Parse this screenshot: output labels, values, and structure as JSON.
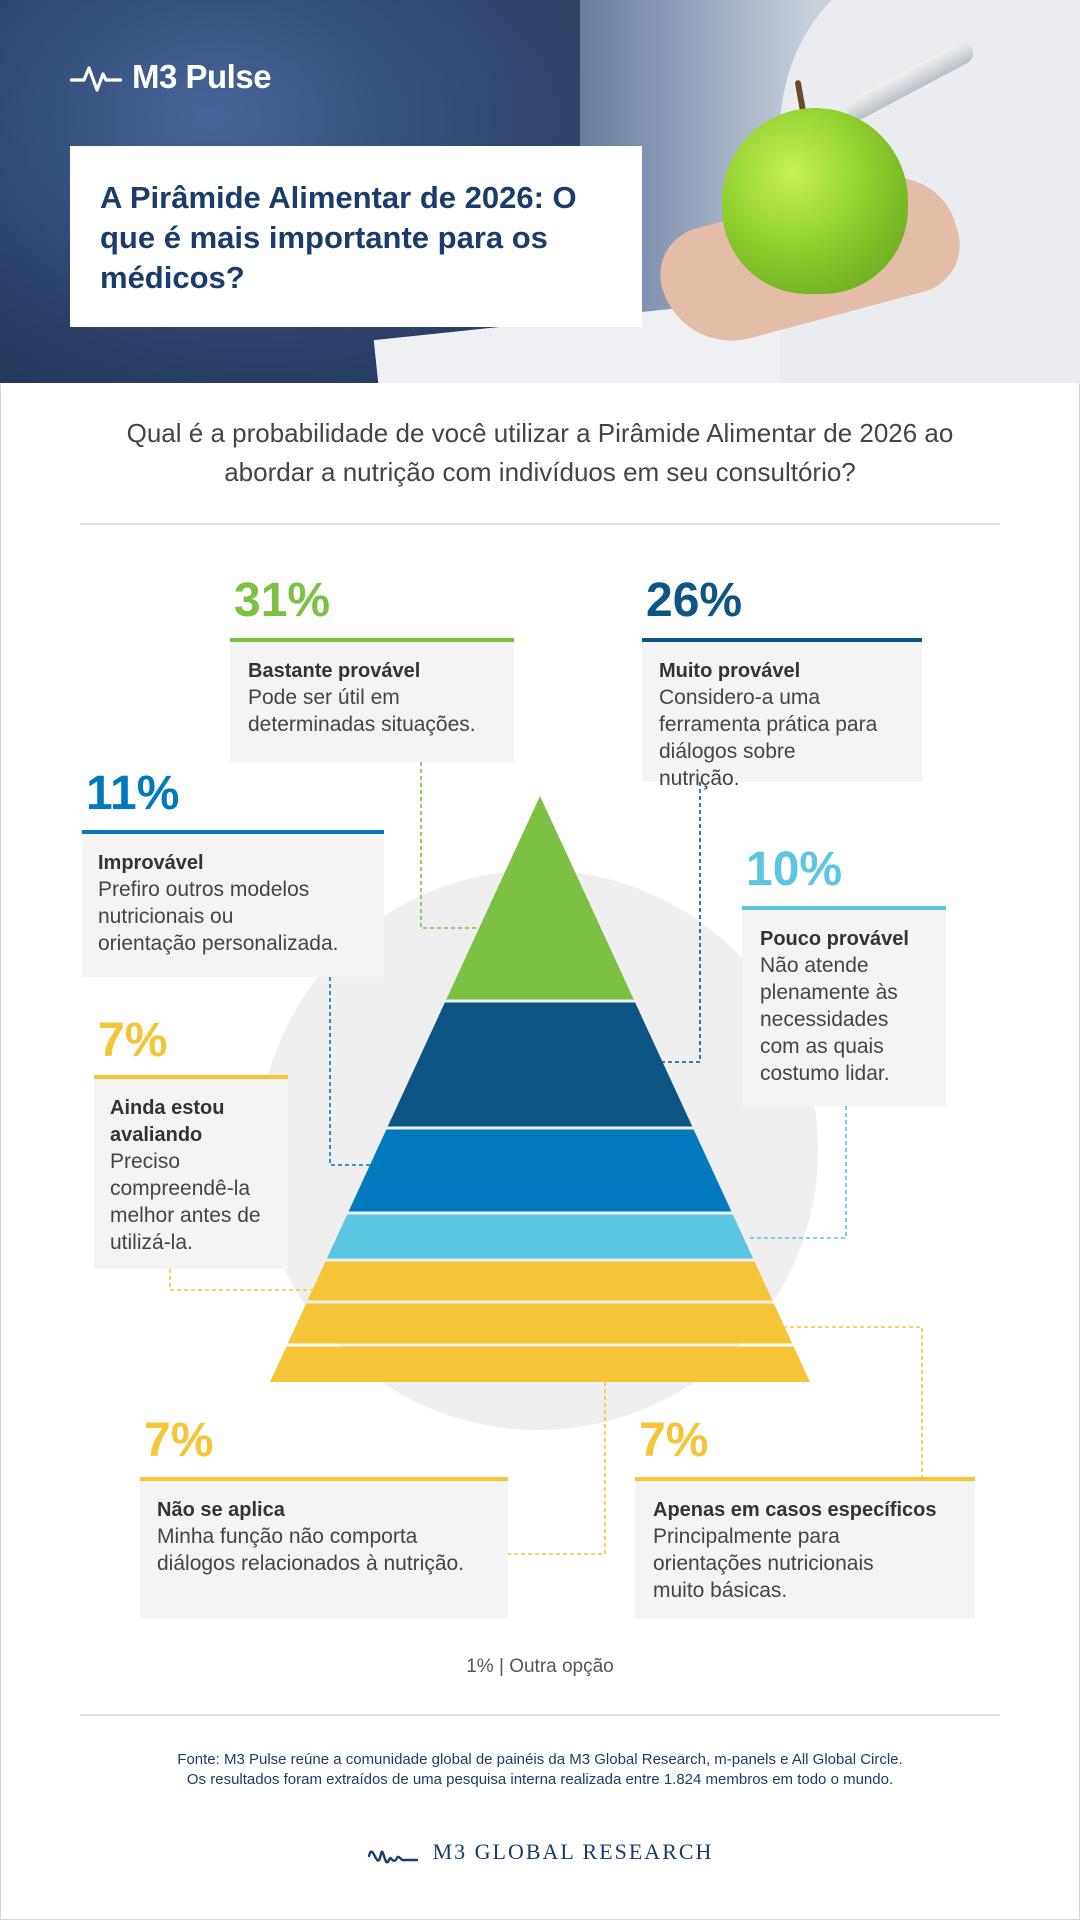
{
  "header": {
    "brand": "M3 Pulse",
    "title": "A Pirâmide Alimentar de 2026: O que é mais importante para os médicos?"
  },
  "question": "Qual é a probabilidade de você utilizar a Pirâmide Alimentar de 2026 ao abordar a nutrição com indivíduos em seu consultório?",
  "colors": {
    "green": "#7cc143",
    "dark_blue": "#0c5585",
    "mid_blue": "#0179bf",
    "light_blue": "#5ac6e2",
    "yellow": "#f5c537",
    "navy": "#1b3c6b"
  },
  "chart_data": {
    "type": "pyramid",
    "categories": [
      {
        "percent": "31%",
        "value": 31,
        "title": "Bastante provável",
        "description": "Pode ser útil em determinadas situações.",
        "color": "#7cc143"
      },
      {
        "percent": "26%",
        "value": 26,
        "title": "Muito provável",
        "description": "Considero-a uma ferramenta prática para diálogos sobre nutrição.",
        "color": "#0c5585"
      },
      {
        "percent": "11%",
        "value": 11,
        "title": "Improvável",
        "description": "Prefiro outros modelos nutricionais ou orientação personalizada.",
        "color": "#0179bf"
      },
      {
        "percent": "10%",
        "value": 10,
        "title": "Pouco provável",
        "description": "Não atende plenamente às necessidades com as quais costumo lidar.",
        "color": "#5ac6e2"
      },
      {
        "percent": "7%",
        "value": 7,
        "title": "Ainda estou avaliando",
        "description": "Preciso compreendê-la melhor antes de utilizá-la.",
        "color": "#f5c537"
      },
      {
        "percent": "7%",
        "value": 7,
        "title": "Apenas em casos específicos",
        "description": "Principalmente para orientações nutricionais muito básicas.",
        "color": "#f5c537"
      },
      {
        "percent": "7%",
        "value": 7,
        "title": "Não se aplica",
        "description": "Minha função não comporta diálogos relacionados à nutrição.",
        "color": "#f5c537"
      }
    ],
    "other": "1% | Outra opção"
  },
  "footer": {
    "source_line1": "Fonte: M3 Pulse reúne a comunidade global de painéis da M3 Global Research, m-panels e All Global Circle.",
    "source_line2": "Os resultados foram extraídos de uma pesquisa interna realizada entre 1.824 membros  em todo o mundo.",
    "brand": "M3  GLOBAL RESEARCH"
  }
}
